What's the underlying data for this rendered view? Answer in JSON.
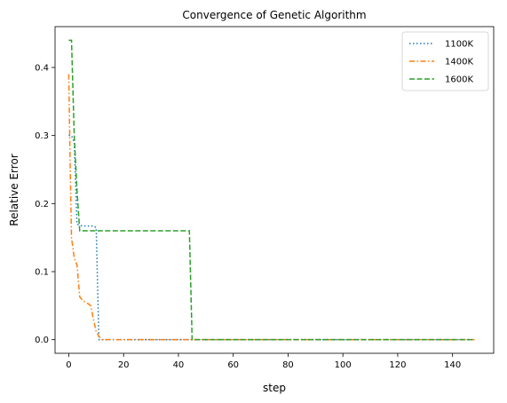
{
  "chart_data": {
    "type": "line",
    "title": "Convergence of Genetic Algorithm",
    "xlabel": "step",
    "ylabel": "Relative Error",
    "xlim": [
      -5,
      155
    ],
    "ylim": [
      -0.02,
      0.46
    ],
    "xticks": [
      0,
      20,
      40,
      60,
      80,
      100,
      120,
      140
    ],
    "yticks": [
      0.0,
      0.1,
      0.2,
      0.3,
      0.4
    ],
    "xtick_labels": [
      "0",
      "20",
      "40",
      "60",
      "80",
      "100",
      "120",
      "140"
    ],
    "ytick_labels": [
      "0.0",
      "0.1",
      "0.2",
      "0.3",
      "0.4"
    ],
    "grid": false,
    "legend_position": "top-right",
    "series": [
      {
        "name": "1100K",
        "color": "#1f77b4",
        "dash": "dotted",
        "x": [
          0,
          1,
          2,
          3,
          4,
          5,
          6,
          7,
          8,
          9,
          10,
          11,
          12,
          13,
          148
        ],
        "y": [
          0.3,
          0.3,
          0.29,
          0.17,
          0.168,
          0.167,
          0.167,
          0.167,
          0.167,
          0.167,
          0.165,
          0.0,
          0.0,
          0.0,
          0.0
        ]
      },
      {
        "name": "1400K",
        "color": "#ff7f0e",
        "dash": "dashdot",
        "x": [
          0,
          0.5,
          1,
          2,
          3,
          4,
          5,
          6,
          7,
          8,
          9,
          10,
          11,
          12,
          148
        ],
        "y": [
          0.39,
          0.26,
          0.15,
          0.12,
          0.11,
          0.063,
          0.058,
          0.055,
          0.053,
          0.05,
          0.03,
          0.012,
          0.005,
          0.0,
          0.0
        ]
      },
      {
        "name": "1600K",
        "color": "#2ca02c",
        "dash": "dashed",
        "x": [
          0,
          1,
          2,
          3,
          4,
          5,
          44,
          45,
          148
        ],
        "y": [
          0.44,
          0.44,
          0.3,
          0.22,
          0.16,
          0.16,
          0.16,
          0.0,
          0.0
        ]
      }
    ]
  }
}
